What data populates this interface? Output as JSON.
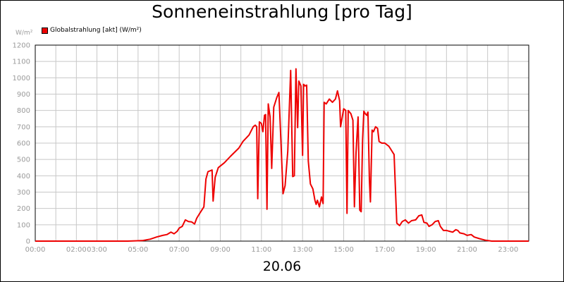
{
  "chart_data": {
    "type": "line",
    "title": "Sonneneinstrahlung [pro Tag]",
    "unit_label": "W/m²",
    "date_label": "20.06",
    "legend": [
      {
        "label": "Globalstrahlung [akt] (W/m²)",
        "color": "#ee0000"
      }
    ],
    "ylim": [
      0,
      1200
    ],
    "y_ticks": [
      0,
      100,
      200,
      300,
      400,
      500,
      600,
      700,
      800,
      900,
      1000,
      1100,
      1200
    ],
    "xlim": [
      0,
      24
    ],
    "x_ticks": [
      {
        "t": 0,
        "label": "00:00"
      },
      {
        "t": 2,
        "label": "02:00"
      },
      {
        "t": 3,
        "label": "03:00"
      },
      {
        "t": 5,
        "label": "05:00"
      },
      {
        "t": 7,
        "label": "07:00"
      },
      {
        "t": 9,
        "label": "09:00"
      },
      {
        "t": 11,
        "label": "11:00"
      },
      {
        "t": 13,
        "label": "13:00"
      },
      {
        "t": 15,
        "label": "15:00"
      },
      {
        "t": 17,
        "label": "17:00"
      },
      {
        "t": 19,
        "label": "19:00"
      },
      {
        "t": 21,
        "label": "21:00"
      },
      {
        "t": 23,
        "label": "23:00"
      }
    ],
    "grid": true,
    "legend_position": "top-left",
    "series": [
      {
        "name": "Globalstrahlung [akt] (W/m²)",
        "color": "#ee0000",
        "points": [
          [
            0.0,
            0
          ],
          [
            4.5,
            0
          ],
          [
            5.2,
            3
          ],
          [
            5.6,
            12
          ],
          [
            5.9,
            25
          ],
          [
            6.2,
            35
          ],
          [
            6.4,
            40
          ],
          [
            6.6,
            55
          ],
          [
            6.75,
            45
          ],
          [
            6.9,
            60
          ],
          [
            7.0,
            80
          ],
          [
            7.15,
            90
          ],
          [
            7.3,
            130
          ],
          [
            7.45,
            120
          ],
          [
            7.6,
            118
          ],
          [
            7.75,
            105
          ],
          [
            7.85,
            140
          ],
          [
            8.0,
            170
          ],
          [
            8.2,
            210
          ],
          [
            8.3,
            380
          ],
          [
            8.4,
            425
          ],
          [
            8.6,
            435
          ],
          [
            8.65,
            245
          ],
          [
            8.75,
            390
          ],
          [
            8.9,
            450
          ],
          [
            9.2,
            480
          ],
          [
            9.5,
            520
          ],
          [
            9.9,
            570
          ],
          [
            10.1,
            610
          ],
          [
            10.4,
            650
          ],
          [
            10.6,
            700
          ],
          [
            10.7,
            710
          ],
          [
            10.77,
            700
          ],
          [
            10.82,
            260
          ],
          [
            10.9,
            730
          ],
          [
            11.0,
            720
          ],
          [
            11.07,
            670
          ],
          [
            11.15,
            770
          ],
          [
            11.2,
            775
          ],
          [
            11.27,
            195
          ],
          [
            11.33,
            840
          ],
          [
            11.42,
            760
          ],
          [
            11.5,
            445
          ],
          [
            11.6,
            820
          ],
          [
            11.75,
            880
          ],
          [
            11.85,
            910
          ],
          [
            11.95,
            610
          ],
          [
            12.05,
            290
          ],
          [
            12.15,
            340
          ],
          [
            12.28,
            550
          ],
          [
            12.42,
            1045
          ],
          [
            12.52,
            395
          ],
          [
            12.6,
            400
          ],
          [
            12.68,
            1055
          ],
          [
            12.76,
            695
          ],
          [
            12.82,
            980
          ],
          [
            12.92,
            950
          ],
          [
            13.0,
            525
          ],
          [
            13.05,
            960
          ],
          [
            13.12,
            950
          ],
          [
            13.2,
            955
          ],
          [
            13.28,
            490
          ],
          [
            13.38,
            350
          ],
          [
            13.5,
            320
          ],
          [
            13.6,
            250
          ],
          [
            13.66,
            225
          ],
          [
            13.72,
            250
          ],
          [
            13.82,
            210
          ],
          [
            13.92,
            270
          ],
          [
            14.0,
            230
          ],
          [
            14.05,
            850
          ],
          [
            14.15,
            840
          ],
          [
            14.3,
            870
          ],
          [
            14.45,
            850
          ],
          [
            14.6,
            870
          ],
          [
            14.7,
            920
          ],
          [
            14.8,
            860
          ],
          [
            14.85,
            700
          ],
          [
            15.0,
            810
          ],
          [
            15.1,
            800
          ],
          [
            15.16,
            170
          ],
          [
            15.22,
            800
          ],
          [
            15.35,
            780
          ],
          [
            15.45,
            740
          ],
          [
            15.52,
            210
          ],
          [
            15.6,
            540
          ],
          [
            15.7,
            760
          ],
          [
            15.78,
            190
          ],
          [
            15.85,
            180
          ],
          [
            15.92,
            620
          ],
          [
            15.98,
            795
          ],
          [
            16.05,
            780
          ],
          [
            16.12,
            770
          ],
          [
            16.18,
            790
          ],
          [
            16.25,
            370
          ],
          [
            16.3,
            240
          ],
          [
            16.38,
            680
          ],
          [
            16.45,
            670
          ],
          [
            16.55,
            700
          ],
          [
            16.65,
            690
          ],
          [
            16.72,
            610
          ],
          [
            16.85,
            600
          ],
          [
            17.0,
            600
          ],
          [
            17.2,
            580
          ],
          [
            17.45,
            530
          ],
          [
            17.58,
            110
          ],
          [
            17.72,
            95
          ],
          [
            17.85,
            120
          ],
          [
            18.0,
            130
          ],
          [
            18.15,
            110
          ],
          [
            18.3,
            125
          ],
          [
            18.5,
            130
          ],
          [
            18.65,
            155
          ],
          [
            18.8,
            160
          ],
          [
            18.9,
            115
          ],
          [
            19.05,
            110
          ],
          [
            19.15,
            90
          ],
          [
            19.3,
            100
          ],
          [
            19.45,
            120
          ],
          [
            19.6,
            125
          ],
          [
            19.7,
            90
          ],
          [
            19.85,
            65
          ],
          [
            20.0,
            65
          ],
          [
            20.15,
            60
          ],
          [
            20.3,
            55
          ],
          [
            20.45,
            70
          ],
          [
            20.55,
            65
          ],
          [
            20.65,
            50
          ],
          [
            20.85,
            45
          ],
          [
            21.0,
            35
          ],
          [
            21.2,
            40
          ],
          [
            21.35,
            25
          ],
          [
            21.6,
            15
          ],
          [
            21.9,
            5
          ],
          [
            22.2,
            0
          ],
          [
            24.0,
            0
          ]
        ]
      }
    ]
  }
}
